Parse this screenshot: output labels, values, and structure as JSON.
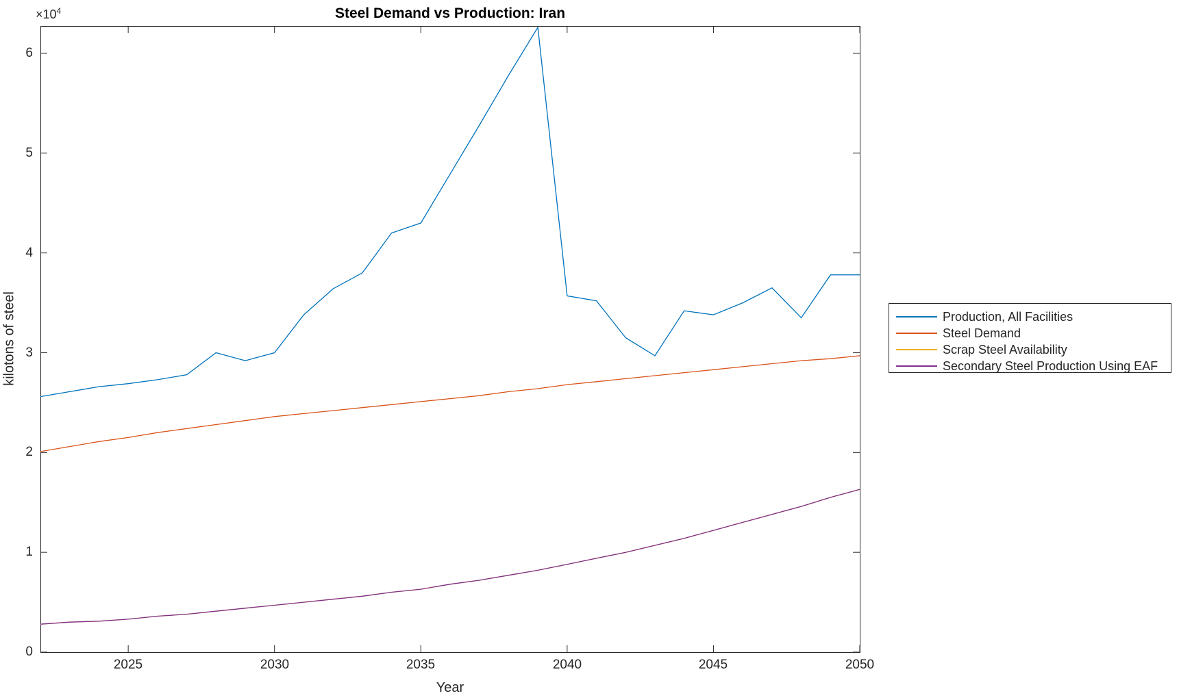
{
  "title": "Steel Demand vs Production: Iran",
  "axes": {
    "x_label": "Year",
    "y_label": "kilotons of steel",
    "y_multiplier_base": "×10",
    "y_multiplier_exponent": "4",
    "x_ticks": [
      2025,
      2030,
      2035,
      2040,
      2045,
      2050
    ],
    "y_ticks": [
      0,
      1,
      2,
      3,
      4,
      5,
      6
    ]
  },
  "legend": {
    "items": [
      {
        "label": "Production, All Facilities"
      },
      {
        "label": "Steel Demand"
      },
      {
        "label": "Scrap Steel Availability"
      },
      {
        "label": "Secondary Steel Production Using EAF"
      }
    ]
  },
  "chart_data": {
    "type": "line",
    "title": "Steel Demand vs Production: Iran",
    "xlabel": "Year",
    "ylabel": "kilotons of steel",
    "xlim": [
      2022,
      2050
    ],
    "ylim": [
      0,
      62740
    ],
    "y_axis_multiplier": 10000,
    "grid": false,
    "legend_position": "right-outside",
    "x": [
      2022,
      2023,
      2024,
      2025,
      2026,
      2027,
      2028,
      2029,
      2030,
      2031,
      2032,
      2033,
      2034,
      2035,
      2036,
      2037,
      2038,
      2039,
      2040,
      2041,
      2042,
      2043,
      2044,
      2045,
      2046,
      2047,
      2048,
      2049,
      2050
    ],
    "series": [
      {
        "name": "Production, All Facilities",
        "color": "#0072BD",
        "values": [
          25600,
          26100,
          26600,
          26900,
          27300,
          27800,
          30000,
          29200,
          30000,
          33800,
          36400,
          38000,
          42000,
          43000,
          47900,
          52800,
          57800,
          62600,
          35700,
          35200,
          31500,
          29700,
          34200,
          33800,
          35000,
          36500,
          33500,
          37800,
          37800
        ]
      },
      {
        "name": "Steel Demand",
        "color": "#D95319",
        "values": [
          20100,
          20600,
          21100,
          21500,
          22000,
          22400,
          22800,
          23200,
          23600,
          23900,
          24200,
          24500,
          24800,
          25100,
          25400,
          25700,
          26100,
          26400,
          26800,
          27100,
          27400,
          27700,
          28000,
          28300,
          28600,
          28900,
          29200,
          29400,
          29700
        ]
      },
      {
        "name": "Scrap Steel Availability",
        "color": "#EDB120",
        "values": [
          2800,
          3000,
          3100,
          3300,
          3600,
          3800,
          4100,
          4400,
          4700,
          5000,
          5300,
          5600,
          6000,
          6300,
          6800,
          7200,
          7700,
          8200,
          8800,
          9400,
          10000,
          10700,
          11400,
          12200,
          13000,
          13800,
          14600,
          15500,
          16300
        ]
      },
      {
        "name": "Secondary Steel Production Using EAF",
        "color": "#7E2F8E",
        "values": [
          2800,
          3000,
          3100,
          3300,
          3600,
          3800,
          4100,
          4400,
          4700,
          5000,
          5300,
          5600,
          6000,
          6300,
          6800,
          7200,
          7700,
          8200,
          8800,
          9400,
          10000,
          10700,
          11400,
          12200,
          13000,
          13800,
          14600,
          15500,
          16300
        ]
      }
    ]
  }
}
